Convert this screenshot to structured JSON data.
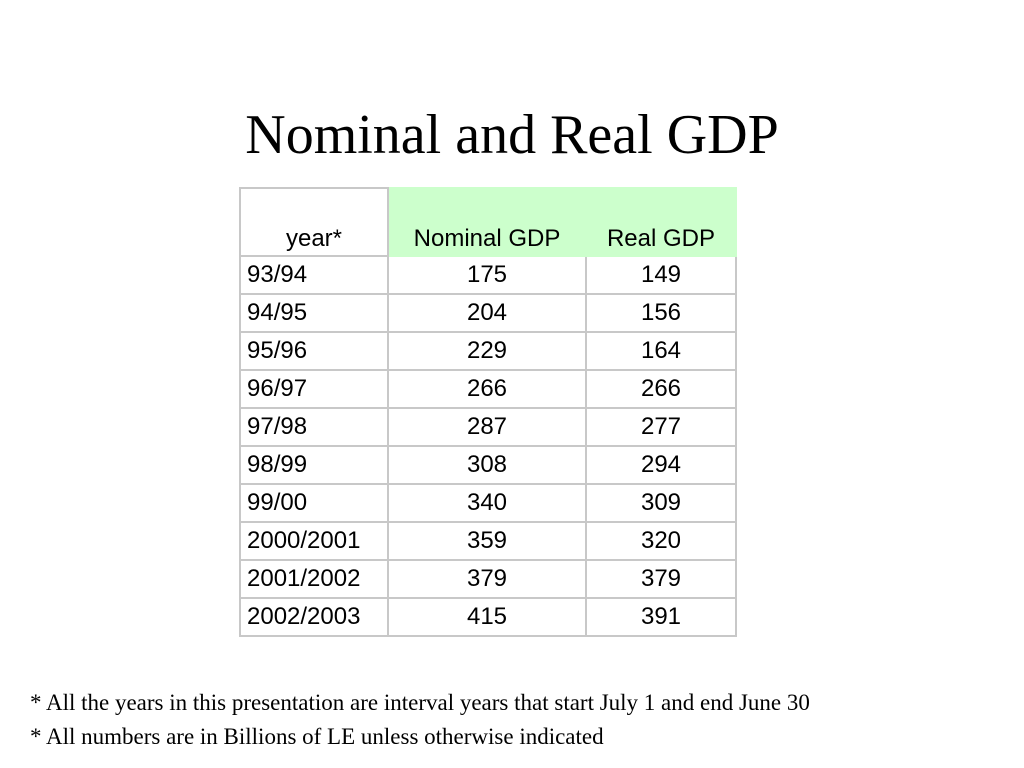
{
  "slide": {
    "title": "Nominal and Real GDP"
  },
  "table": {
    "headers": {
      "year": "year*",
      "nominal": "Nominal GDP",
      "real": "Real GDP"
    },
    "rows": [
      {
        "year": "93/94",
        "nominal": "175",
        "real": "149"
      },
      {
        "year": "94/95",
        "nominal": "204",
        "real": "156"
      },
      {
        "year": "95/96",
        "nominal": "229",
        "real": "164"
      },
      {
        "year": "96/97",
        "nominal": "266",
        "real": "266"
      },
      {
        "year": "97/98",
        "nominal": "287",
        "real": "277"
      },
      {
        "year": "98/99",
        "nominal": "308",
        "real": "294"
      },
      {
        "year": "99/00",
        "nominal": "340",
        "real": "309"
      },
      {
        "year": "2000/2001",
        "nominal": "359",
        "real": "320"
      },
      {
        "year": "2001/2002",
        "nominal": "379",
        "real": "379"
      },
      {
        "year": "2002/2003",
        "nominal": "415",
        "real": "391"
      }
    ],
    "header_highlight_color": "#ccffcc",
    "border_color": "#c8c8c8"
  },
  "footnotes": [
    "* All the years in this presentation are interval years that start July 1 and end June 30",
    "* All numbers are in Billions of LE unless otherwise indicated"
  ]
}
